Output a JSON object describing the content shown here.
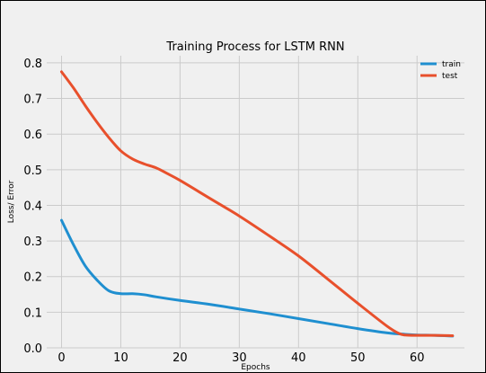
{
  "chart_data": {
    "type": "line",
    "title": "Training Process for LSTM RNN",
    "xlabel": "Epochs",
    "ylabel": "Loss/ Error",
    "xlim": [
      -2.5,
      68
    ],
    "ylim": [
      0.0,
      0.82
    ],
    "xticks": [
      0,
      10,
      20,
      30,
      40,
      50,
      60
    ],
    "yticks": [
      0.0,
      0.1,
      0.2,
      0.3,
      0.4,
      0.5,
      0.6,
      0.7,
      0.8
    ],
    "grid": true,
    "legend_position": "top-right",
    "series": [
      {
        "name": "train",
        "color": "#1f8fd0",
        "x": [
          0,
          2,
          4,
          6,
          8,
          10,
          12,
          14,
          16,
          20,
          25,
          30,
          35,
          40,
          45,
          50,
          55,
          58,
          60,
          63,
          66
        ],
        "y": [
          0.358,
          0.29,
          0.23,
          0.19,
          0.16,
          0.152,
          0.152,
          0.149,
          0.143,
          0.133,
          0.122,
          0.109,
          0.096,
          0.082,
          0.068,
          0.054,
          0.042,
          0.038,
          0.036,
          0.035,
          0.033
        ]
      },
      {
        "name": "test",
        "color": "#e8502c",
        "x": [
          0,
          2,
          4,
          6,
          8,
          10,
          12,
          14,
          16,
          18,
          20,
          25,
          30,
          35,
          40,
          45,
          50,
          55,
          57,
          58,
          60,
          63,
          66
        ],
        "y": [
          0.775,
          0.73,
          0.68,
          0.633,
          0.59,
          0.553,
          0.53,
          0.516,
          0.505,
          0.488,
          0.47,
          0.42,
          0.37,
          0.315,
          0.258,
          0.192,
          0.125,
          0.06,
          0.04,
          0.036,
          0.035,
          0.035,
          0.034
        ]
      }
    ]
  }
}
